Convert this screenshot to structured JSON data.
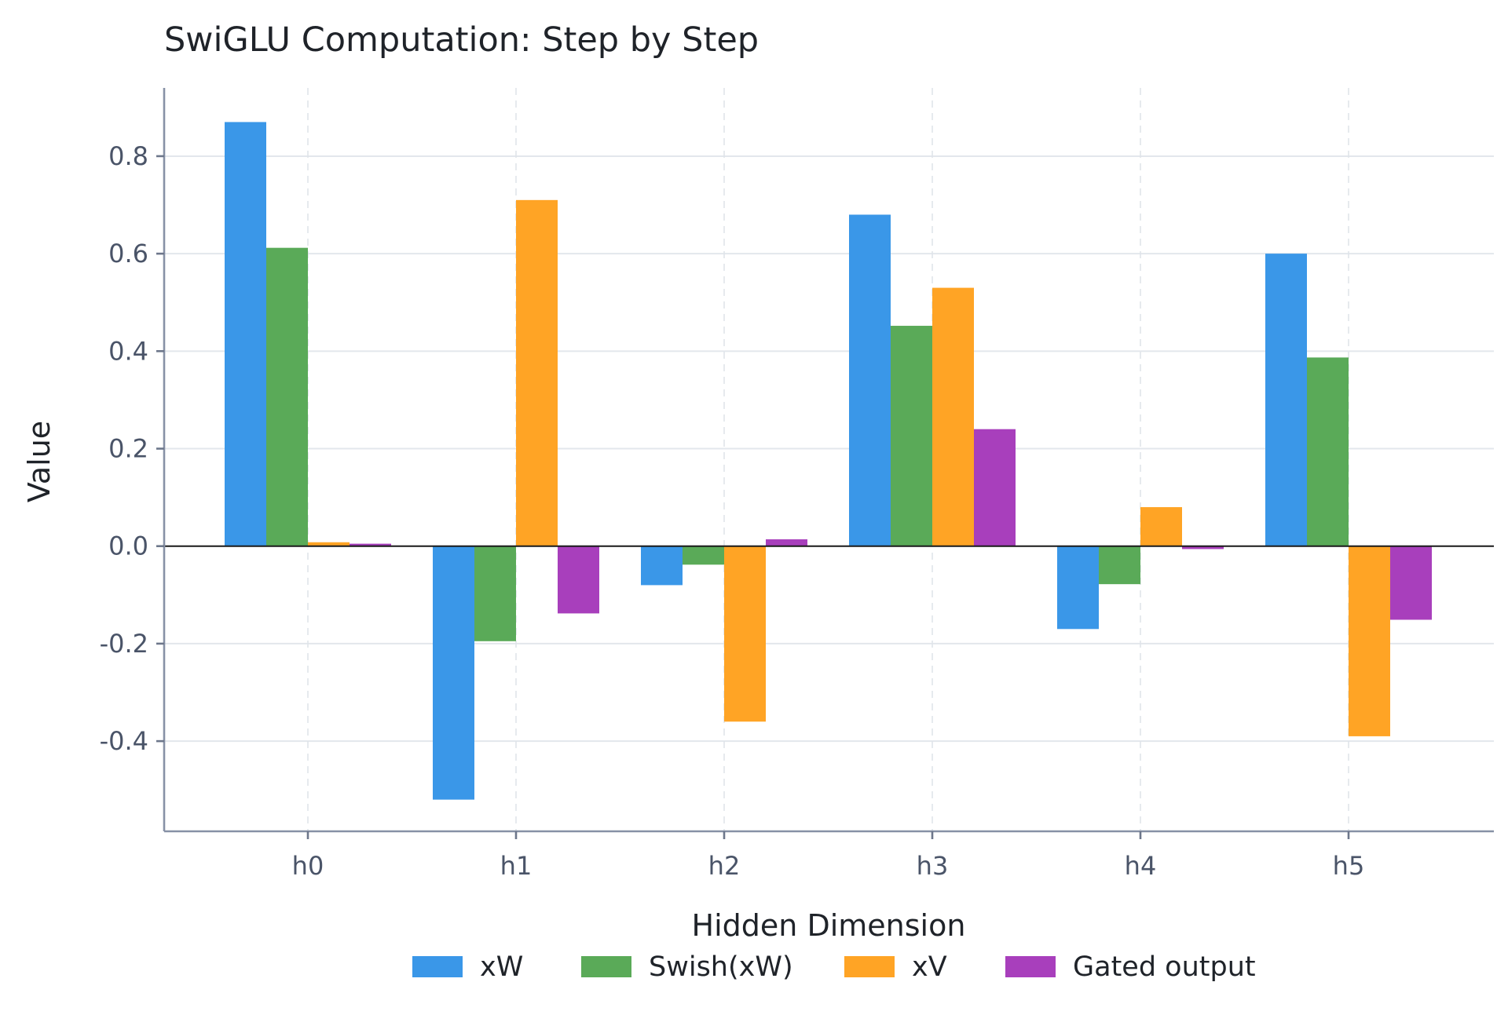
{
  "chart_data": {
    "type": "bar",
    "title": "SwiGLU Computation: Step by Step",
    "xlabel": "Hidden Dimension",
    "ylabel": "Value",
    "categories": [
      "h0",
      "h1",
      "h2",
      "h3",
      "h4",
      "h5"
    ],
    "ylim": [
      -0.585,
      0.94
    ],
    "yticks": [
      -0.4,
      -0.2,
      0.0,
      0.2,
      0.4,
      0.6,
      0.8
    ],
    "ytick_labels": [
      "-0.4",
      "-0.2",
      "0.0",
      "0.2",
      "0.4",
      "0.6",
      "0.8"
    ],
    "grid": true,
    "legend": {
      "placement": "bottom-center",
      "orientation": "horizontal"
    },
    "series": [
      {
        "name": "xW",
        "color": "#3a97e8",
        "values": [
          0.87,
          -0.52,
          -0.08,
          0.68,
          -0.17,
          0.6
        ]
      },
      {
        "name": "Swish(xW)",
        "color": "#5aaa58",
        "values": [
          0.612,
          -0.195,
          -0.038,
          0.452,
          -0.078,
          0.387
        ]
      },
      {
        "name": "xV",
        "color": "#ffa425",
        "values": [
          0.008,
          0.71,
          -0.36,
          0.53,
          0.08,
          -0.39
        ]
      },
      {
        "name": "Gated output",
        "color": "#a83fbc",
        "values": [
          0.005,
          -0.138,
          0.014,
          0.24,
          -0.006,
          -0.151
        ]
      }
    ]
  }
}
